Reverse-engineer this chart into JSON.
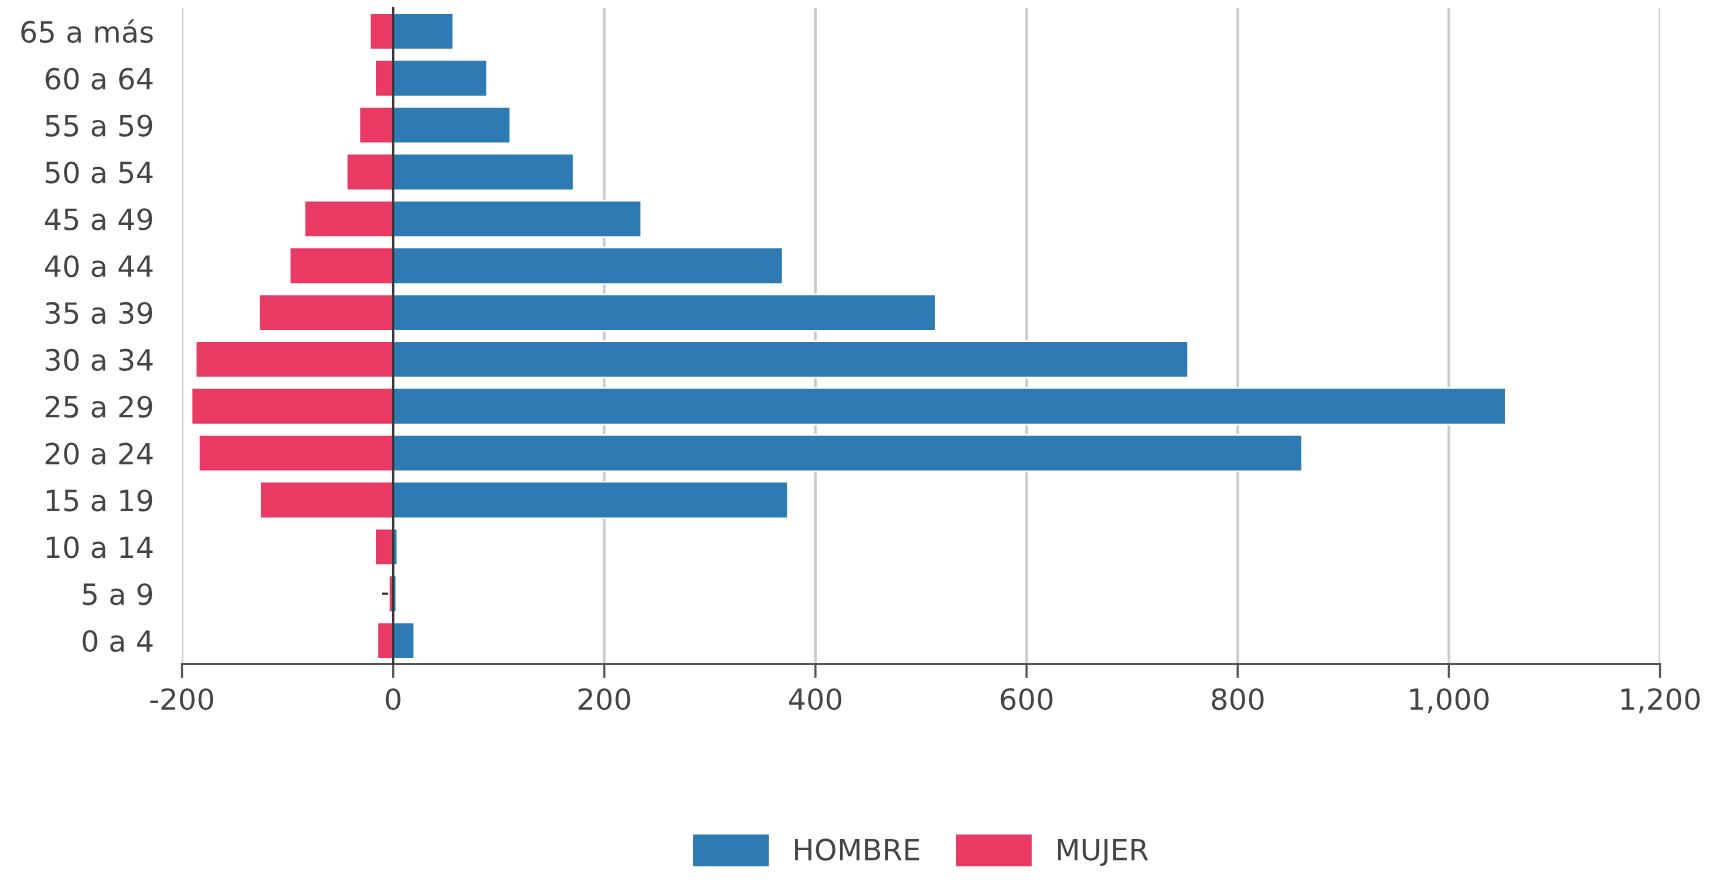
{
  "chart_data": {
    "type": "bar",
    "orientation": "horizontal",
    "categories": [
      "65 a más",
      "60 a 64",
      "55 a 59",
      "50 a 54",
      "45 a 49",
      "40 a 44",
      "35 a 39",
      "30 a 34",
      "25 a 29",
      "20 a 24",
      "15 a 19",
      "10 a 14",
      "5 a 9",
      "0 a 4"
    ],
    "series": [
      {
        "name": "HOMBRE",
        "color": "#2e7bb4",
        "values": [
          57,
          89,
          111,
          171,
          235,
          369,
          514,
          753,
          1054,
          861,
          374,
          4,
          3,
          20
        ]
      },
      {
        "name": "MUJER",
        "color": "#e83a63",
        "values": [
          -22,
          -17,
          -32,
          -44,
          -84,
          -98,
          -127,
          -187,
          -191,
          -184,
          -126,
          -17,
          -4,
          -15
        ]
      }
    ],
    "xlim": [
      -200,
      1200
    ],
    "xticks": [
      {
        "value": -200,
        "label": "-200"
      },
      0,
      200,
      400,
      600,
      800,
      {
        "value": 1000,
        "label": "1,000"
      },
      {
        "value": 1200,
        "label": "1,200"
      }
    ],
    "grid": "x",
    "legend": "bottom",
    "stacked": true
  }
}
